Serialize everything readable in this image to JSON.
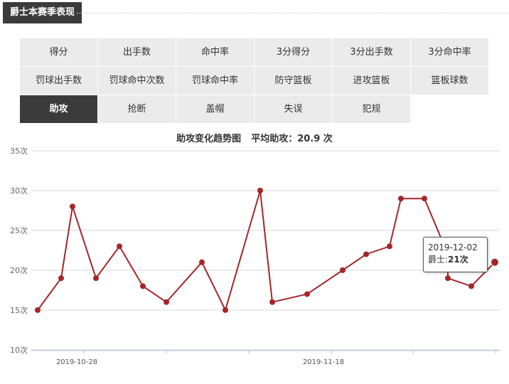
{
  "section": {
    "title": "爵士本赛季表现"
  },
  "tabs": [
    {
      "label": "得分",
      "active": false
    },
    {
      "label": "出手数",
      "active": false
    },
    {
      "label": "命中率",
      "active": false
    },
    {
      "label": "3分得分",
      "active": false
    },
    {
      "label": "3分出手数",
      "active": false
    },
    {
      "label": "3分命中率",
      "active": false
    },
    {
      "label": "罚球出手数",
      "active": false
    },
    {
      "label": "罚球命中次数",
      "active": false
    },
    {
      "label": "罚球命中率",
      "active": false
    },
    {
      "label": "防守篮板",
      "active": false
    },
    {
      "label": "进攻篮板",
      "active": false
    },
    {
      "label": "篮板球数",
      "active": false
    },
    {
      "label": "助攻",
      "active": true
    },
    {
      "label": "抢断",
      "active": false
    },
    {
      "label": "盖帽",
      "active": false
    },
    {
      "label": "失误",
      "active": false
    },
    {
      "label": "犯规",
      "active": false
    }
  ],
  "tooltip": {
    "date": "2019-12-02",
    "label": "爵士:",
    "value": "21次"
  },
  "chart_data": {
    "type": "line",
    "title": "助攻变化趋势图",
    "subtitle_label": "平均助攻：",
    "subtitle_value": "20.9 次",
    "ylim": [
      10,
      35
    ],
    "y_ticks": [
      10,
      15,
      20,
      25,
      30,
      35
    ],
    "y_tick_suffix": "次",
    "x_tick_labels": [
      "2019-10-28",
      "2019-11-18"
    ],
    "grid": true,
    "line_color": "#a3262a",
    "series": [
      {
        "values": [
          15,
          19,
          28,
          19,
          23,
          18,
          16,
          21,
          15,
          30,
          16,
          17,
          20,
          22,
          23,
          29,
          29,
          22,
          19,
          18,
          21
        ]
      }
    ]
  }
}
